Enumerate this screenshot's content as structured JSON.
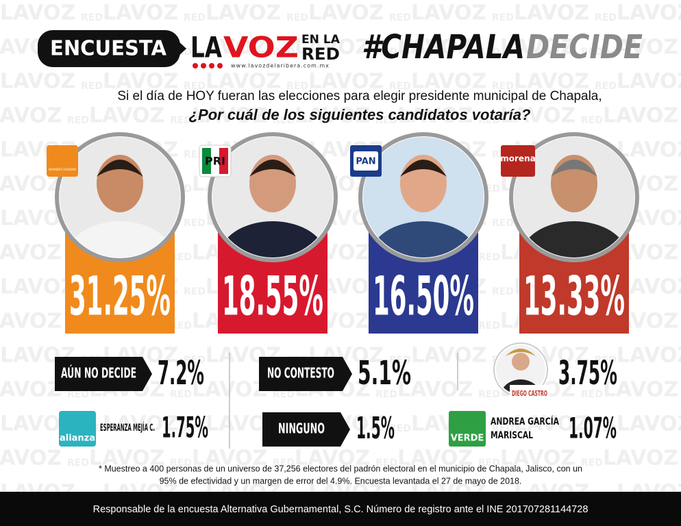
{
  "header": {
    "badge": "ENCUESTA",
    "logo_la": "LA",
    "logo_voz": "VOZ",
    "logo_en_la": "EN LA",
    "logo_red": "RED",
    "website": "www.lavozdelaribera.com.mx",
    "hashtag_a": "#CHAPALA",
    "hashtag_b": "DECIDE"
  },
  "watermark": {
    "main": "LAVOZ",
    "sub": "RED"
  },
  "question": {
    "line1": "Si el día de HOY fueran las elecciones para elegir presidente municipal de Chapala,",
    "line2": "¿Por cuál de los siguientes candidatos votaría?"
  },
  "candidates": [
    {
      "party": "MOVIMIENTO CIUDADANO",
      "party_color": "#f08a1c",
      "color": "#f08a1c",
      "percent": "31.25%"
    },
    {
      "party": "PRI",
      "party_color": "#d7192e",
      "color": "#d7192e",
      "percent": "18.55%"
    },
    {
      "party": "PAN",
      "party_color": "#1b3c8c",
      "color": "#2b3990",
      "percent": "16.50%"
    },
    {
      "party": "morena",
      "party_color": "#b5261e",
      "color": "#c0392b",
      "percent": "13.33%"
    }
  ],
  "others": [
    {
      "label": "AÚN NO DECIDE",
      "percent": "7.2%"
    },
    {
      "label": "NO CONTESTO",
      "percent": "5.1%"
    },
    {
      "label": "DIEGO CASTRO",
      "percent": "3.75%"
    },
    {
      "label": "ESPERANZA MEJÍA C.",
      "party": "alianza",
      "percent": "1.75%"
    },
    {
      "label": "NINGUNO",
      "percent": "1.5%"
    },
    {
      "label_line1": "ANDREA GARCÍA",
      "label_line2": "MARISCAL",
      "party": "VERDE",
      "percent": "1.07%"
    }
  ],
  "footnote": {
    "line1": "* Muestreo a 400 personas de un universo de 37,256 electores del padrón electoral en el municipio de Chapala, Jalisco, con un",
    "line2": "95% de efectividad y un margen de error del 4.9%. Encuesta levantada el 27 de mayo de 2018."
  },
  "footer": "Responsable de la encuesta Alternativa Gubernamental, S.C.  Número de registro ante el INE 201707281144728"
}
